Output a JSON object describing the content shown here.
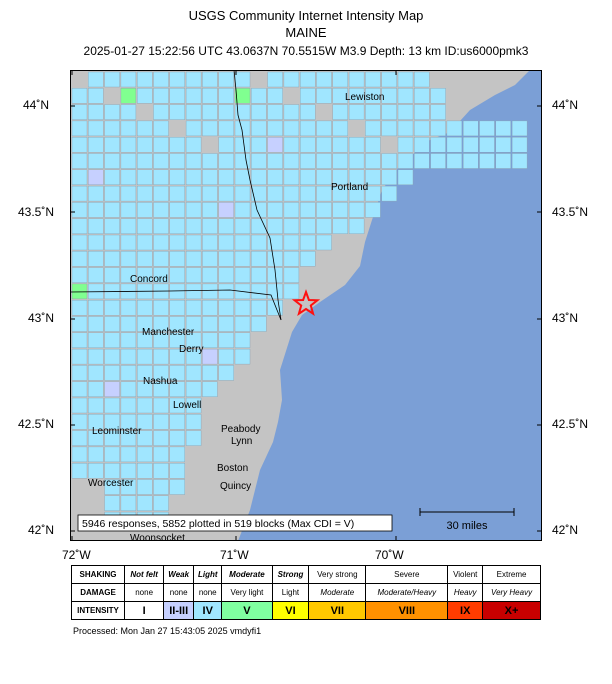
{
  "header": {
    "title": "USGS Community Internet Intensity Map",
    "region": "MAINE",
    "event_line": "2025-01-27 15:22:56 UTC 43.0637N 70.5515W M3.9 Depth: 13 km ID:us6000pmk3"
  },
  "map": {
    "lat_labels": [
      "44˚N",
      "43.5˚N",
      "43˚N",
      "42.5˚N",
      "42˚N"
    ],
    "lon_labels": [
      "72˚W",
      "71˚W",
      "70˚W"
    ],
    "place_labels": [
      "Lewiston",
      "Portland",
      "Concord",
      "Manchester",
      "Derry",
      "Nashua",
      "Lowell",
      "Peabody",
      "Lynn",
      "Leominster",
      "Boston",
      "Quincy",
      "Worcester",
      "Woonsocket"
    ],
    "responses_box": "5946 responses, 5852 plotted in 519 blocks (Max CDI = V)",
    "scale_bar": "30 miles",
    "colors": {
      "water": "#7b9fd6",
      "land": "#c4c4c4",
      "intensity_II_III": "#c6d0ff",
      "intensity_IV": "#a0e6ff",
      "intensity_V": "#80ff90",
      "epicenter": "#ff1010"
    }
  },
  "legend": {
    "shaking_label": "SHAKING",
    "damage_label": "DAMAGE",
    "intensity_label": "INTENSITY",
    "shaking": [
      "Not felt",
      "Weak",
      "Light",
      "Moderate",
      "Strong",
      "Very strong",
      "Severe",
      "Violent",
      "Extreme"
    ],
    "damage": [
      "none",
      "none",
      "none",
      "Very light",
      "Light",
      "Moderate",
      "Moderate/Heavy",
      "Heavy",
      "Very Heavy"
    ],
    "intensity": [
      "I",
      "II-III",
      "IV",
      "V",
      "VI",
      "VII",
      "VIII",
      "IX",
      "X+"
    ],
    "intensity_colors": [
      "#ffffff",
      "#c6d0ff",
      "#a0e6ff",
      "#80ffa0",
      "#ffff00",
      "#ffc800",
      "#ff9100",
      "#ff3c00",
      "#c80000"
    ]
  },
  "footer": {
    "processed": "Processed: Mon Jan 27 15:43:05 2025 vmdyfi1"
  }
}
